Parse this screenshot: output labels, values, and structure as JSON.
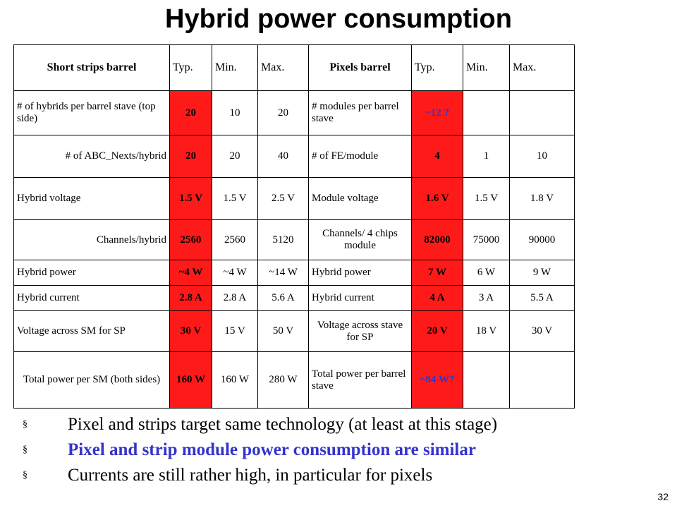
{
  "title": "Hybrid power consumption",
  "table": {
    "headers": [
      "Short strips barrel",
      "Typ.",
      "Min.",
      "Max.",
      "Pixels barrel",
      "Typ.",
      "Min.",
      "Max."
    ],
    "rows": [
      [
        "# of hybrids per barrel stave (top side)",
        "20",
        "10",
        "20",
        "# modules per barrel stave",
        "~12 ?",
        "",
        ""
      ],
      [
        "# of ABC_Nexts/hybrid",
        "20",
        "20",
        "40",
        "# of FE/module",
        "4",
        "1",
        "10"
      ],
      [
        "Hybrid voltage",
        "1.5 V",
        "1.5 V",
        "2.5 V",
        "Module voltage",
        "1.6 V",
        "1.5 V",
        "1.8 V"
      ],
      [
        "Channels/hybrid",
        "2560",
        "2560",
        "5120",
        "Channels/ 4 chips module",
        "82000",
        "75000",
        "90000"
      ],
      [
        "Hybrid power",
        "~4 W",
        "~4 W",
        "~14 W",
        "Hybrid power",
        "7 W",
        "6 W",
        "9 W"
      ],
      [
        "Hybrid current",
        "2.8 A",
        "2.8 A",
        "5.6 A",
        "Hybrid current",
        "4 A",
        "3 A",
        "5.5 A"
      ],
      [
        "Voltage across SM for SP",
        "30 V",
        "15 V",
        "50 V",
        "Voltage across stave for SP",
        "20 V",
        "18 V",
        "30 V"
      ],
      [
        "Total power per SM (both sides)",
        "160 W",
        "160 W",
        "280 W",
        "Total power per barrel stave",
        "~84 W?",
        "",
        ""
      ]
    ]
  },
  "bullets": [
    "Pixel and strips target same technology (at least at this stage)",
    "Pixel and strip module power consumption are similar",
    "Currents are still rather high, in particular for pixels"
  ],
  "bullet_marker": "§",
  "page_number": "32",
  "colors": {
    "highlight_red": "#ff1a1a",
    "accent_blue": "#3333cc"
  }
}
